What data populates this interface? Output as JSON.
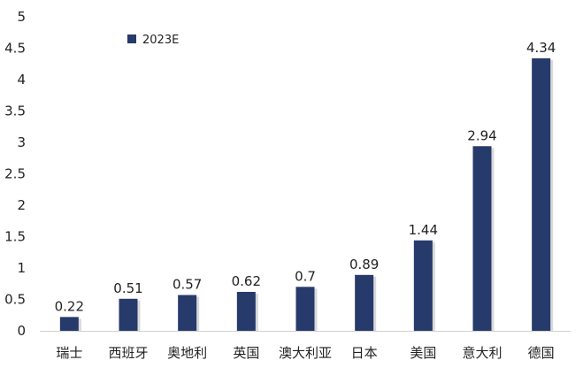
{
  "chart_data": {
    "type": "bar",
    "categories": [
      "瑞士",
      "西班牙",
      "奥地利",
      "英国",
      "澳大利亚",
      "日本",
      "美国",
      "意大利",
      "德国"
    ],
    "series": [
      {
        "name": "2023E",
        "values": [
          0.22,
          0.51,
          0.57,
          0.62,
          0.7,
          0.89,
          1.44,
          2.94,
          4.34
        ],
        "labels": [
          "0.22",
          "0.51",
          "0.57",
          "0.62",
          "0.7",
          "0.89",
          "1.44",
          "2.94",
          "4.34"
        ]
      }
    ],
    "title": "",
    "xlabel": "",
    "ylabel": "",
    "ylim": [
      0,
      5
    ],
    "yticks": [
      "0",
      "0.5",
      "1",
      "1.5",
      "2",
      "2.5",
      "3",
      "3.5",
      "4",
      "4.5",
      "5"
    ],
    "grid": false,
    "legend": "top-left",
    "colors": {
      "bar": "#263a6b",
      "axis": "#d0d0d0"
    }
  }
}
